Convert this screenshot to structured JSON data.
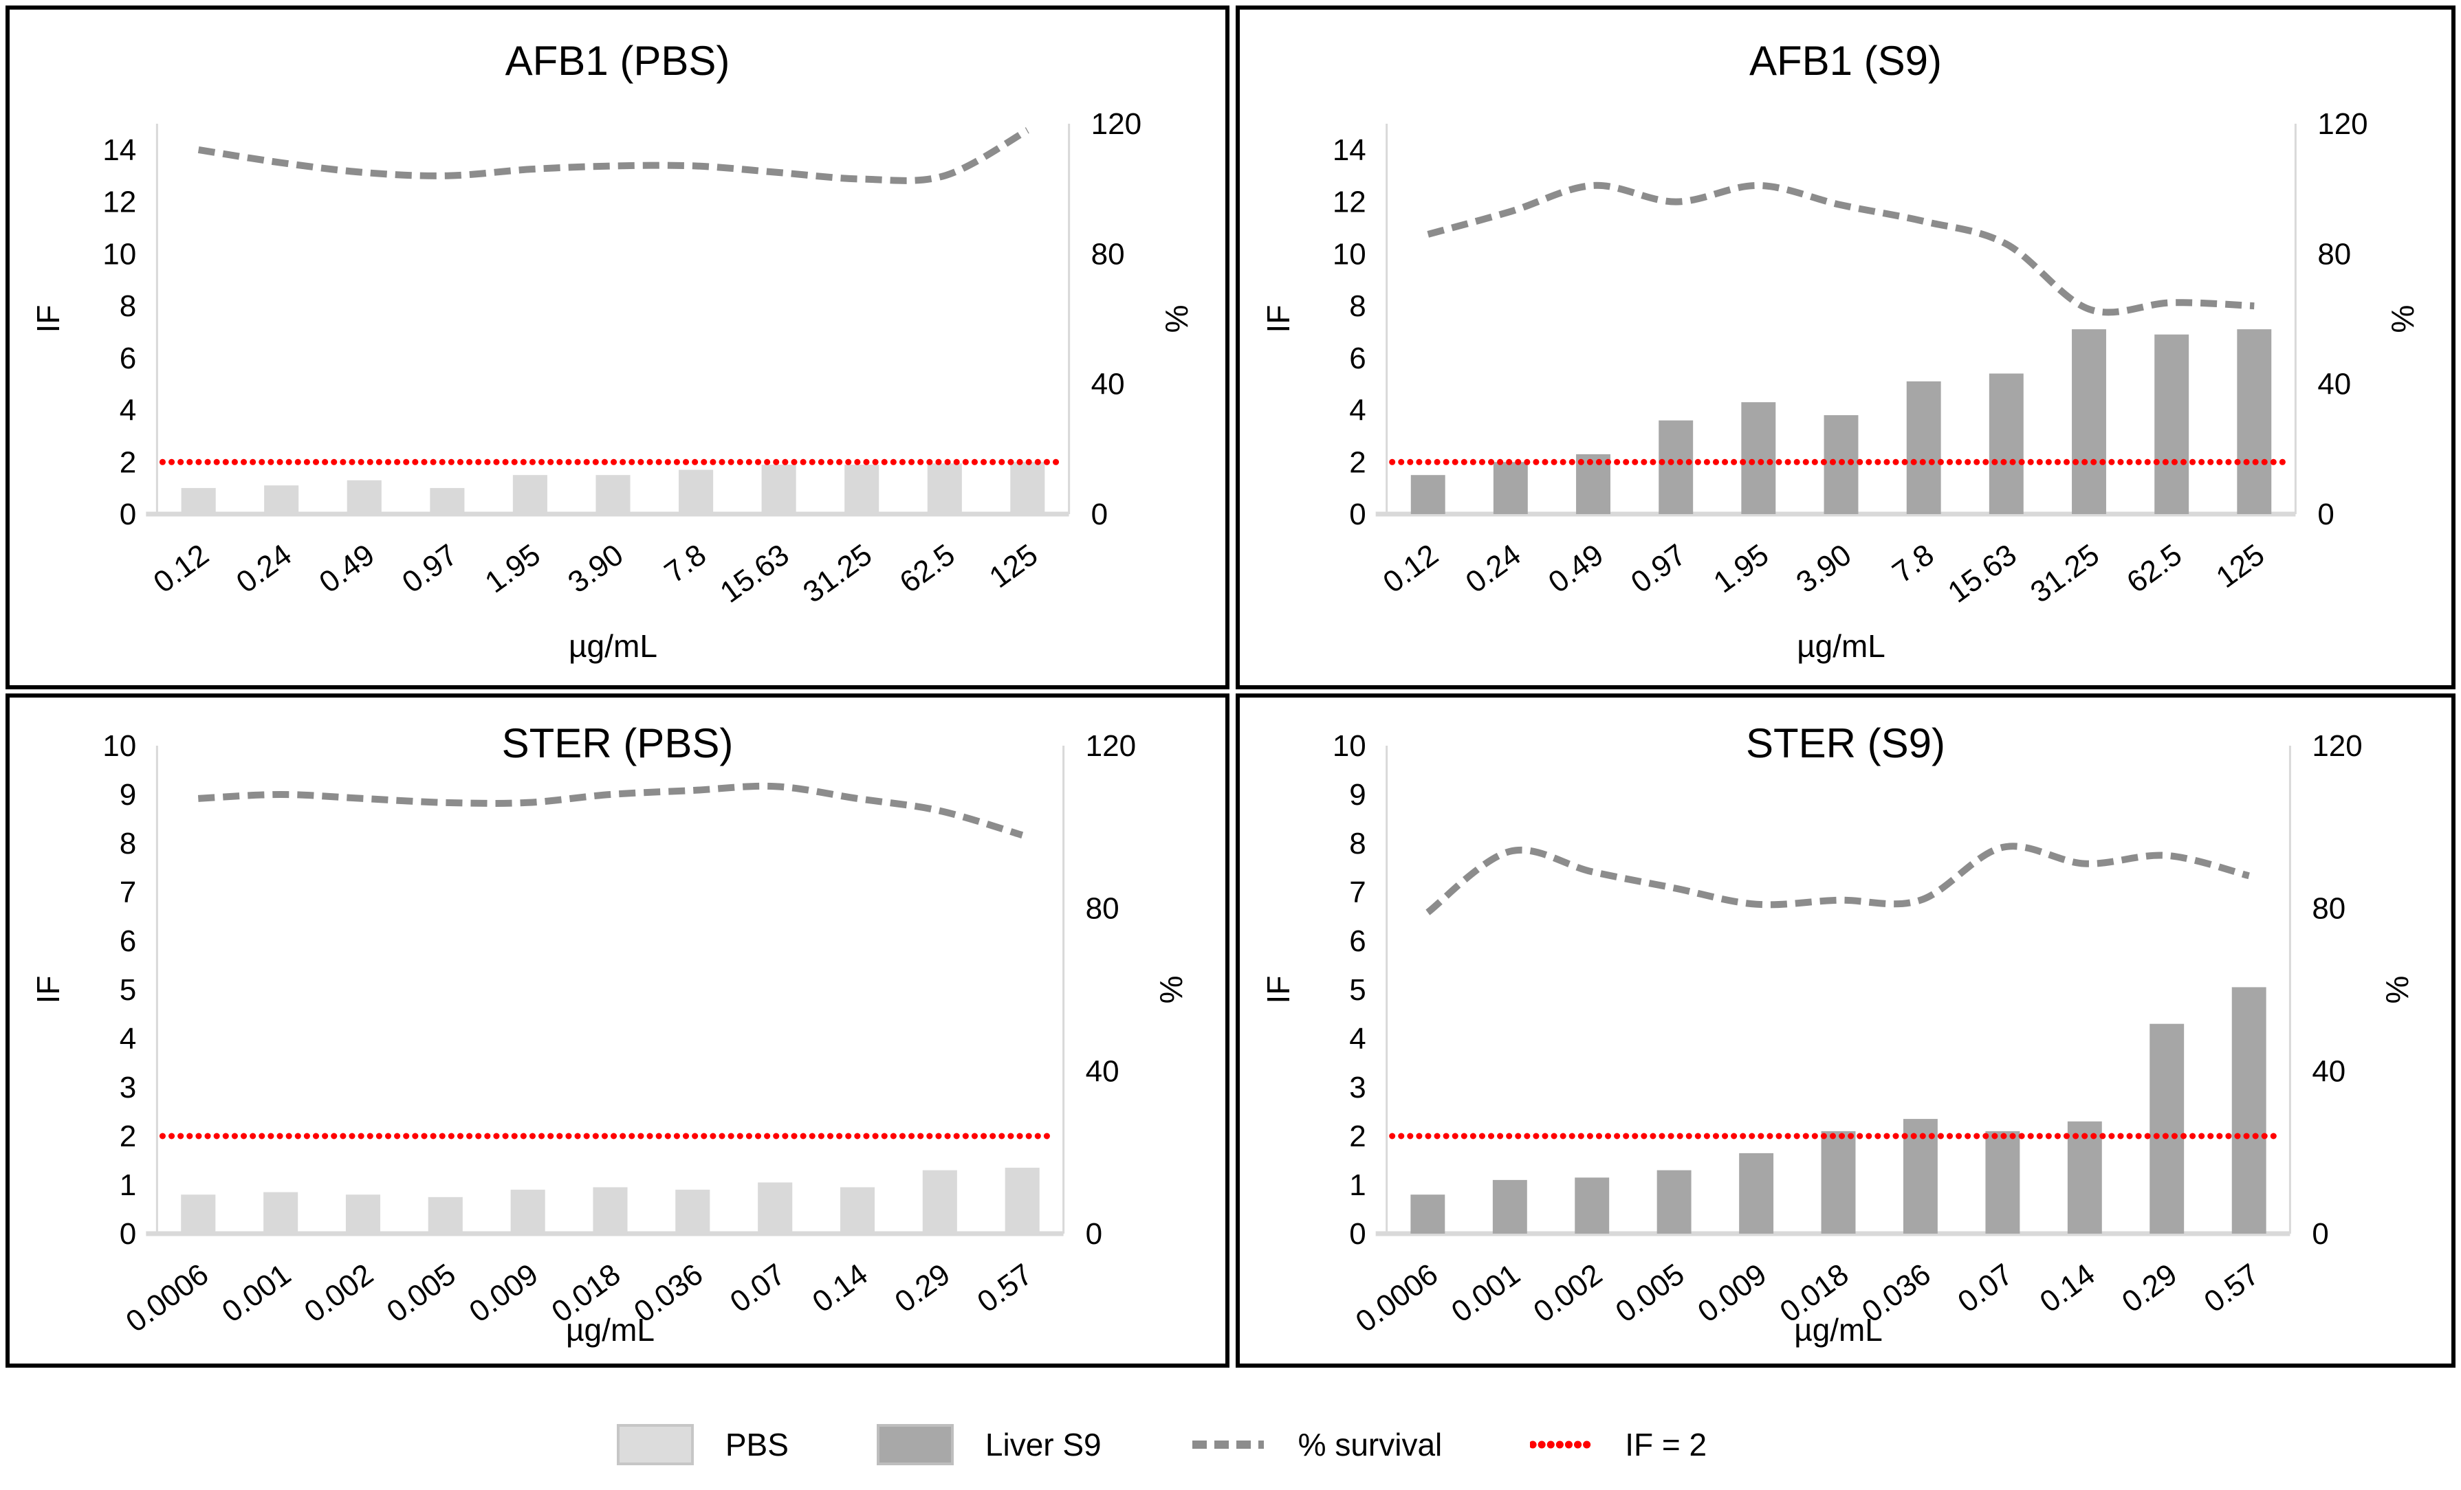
{
  "figure_title": "",
  "colors": {
    "bar_light": "#d9d9d9",
    "bar_dark": "#a6a6a6",
    "survival_line": "#8c8c8c",
    "ref_line": "#ff0000",
    "axis_line": "#d9d9d9",
    "baseline": "#d9d9d9",
    "text": "#000000",
    "panel_border": "#000000",
    "background": "#ffffff"
  },
  "legend": {
    "items": [
      {
        "kind": "swatch",
        "label": "PBS",
        "fill": "#dcdcdc",
        "stroke": "#c6c6c6"
      },
      {
        "kind": "swatch",
        "label": "Liver S9",
        "fill": "#a8a8a8",
        "stroke": "#bebebe"
      },
      {
        "kind": "dashes",
        "label": "% survival",
        "color": "#8c8c8c"
      },
      {
        "kind": "dots",
        "label": "IF = 2",
        "color": "#ff0000"
      }
    ]
  },
  "chart_data": [
    {
      "type": "bar",
      "title": "AFB1 (PBS)",
      "xlabel": "µg/mL",
      "categories": [
        "0.12",
        "0.24",
        "0.49",
        "0.97",
        "1.95",
        "3.90",
        "7.8",
        "15.63",
        "31.25",
        "62.5",
        "125"
      ],
      "left_axis": {
        "label": "IF",
        "min": 0,
        "max": 15,
        "ticks": [
          0,
          2,
          4,
          6,
          8,
          10,
          12,
          14
        ]
      },
      "right_axis": {
        "label": "%",
        "min": 0,
        "max": 120,
        "ticks": [
          0,
          40,
          80,
          120
        ]
      },
      "grid": false,
      "series": [
        {
          "name": "PBS",
          "type": "bar",
          "axis": "left",
          "color": "#d9d9d9",
          "values": [
            1.0,
            1.1,
            1.3,
            1.0,
            1.5,
            1.5,
            1.7,
            1.9,
            1.9,
            1.95,
            2.0
          ]
        },
        {
          "name": "% survival",
          "type": "line",
          "axis": "right",
          "color": "#8c8c8c",
          "values": [
            112,
            108,
            105,
            104,
            106,
            107,
            107,
            105,
            103,
            104,
            118
          ]
        },
        {
          "name": "IF = 2",
          "type": "refline",
          "axis": "left",
          "color": "#ff0000",
          "value": 2
        }
      ]
    },
    {
      "type": "bar",
      "title": "AFB1 (S9)",
      "xlabel": "µg/mL",
      "categories": [
        "0.12",
        "0.24",
        "0.49",
        "0.97",
        "1.95",
        "3.90",
        "7.8",
        "15.63",
        "31.25",
        "62.5",
        "125"
      ],
      "left_axis": {
        "label": "IF",
        "min": 0,
        "max": 15,
        "ticks": [
          0,
          2,
          4,
          6,
          8,
          10,
          12,
          14
        ]
      },
      "right_axis": {
        "label": "%",
        "min": 0,
        "max": 120,
        "ticks": [
          0,
          40,
          80,
          120
        ]
      },
      "grid": false,
      "series": [
        {
          "name": "Liver S9",
          "type": "bar",
          "axis": "left",
          "color": "#a6a6a6",
          "values": [
            1.5,
            2.0,
            2.3,
            3.6,
            4.3,
            3.8,
            5.1,
            5.4,
            7.1,
            6.9,
            7.1
          ]
        },
        {
          "name": "% survival",
          "type": "line",
          "axis": "right",
          "color": "#8c8c8c",
          "values": [
            86,
            93,
            101,
            96,
            101,
            95,
            90,
            83,
            63,
            65,
            64
          ]
        },
        {
          "name": "IF = 2",
          "type": "refline",
          "axis": "left",
          "color": "#ff0000",
          "value": 2
        }
      ]
    },
    {
      "type": "bar",
      "title": "STER (PBS)",
      "xlabel": "µg/mL",
      "categories": [
        "0.0006",
        "0.001",
        "0.002",
        "0.005",
        "0.009",
        "0.018",
        "0.036",
        "0.07",
        "0.14",
        "0.29",
        "0.57"
      ],
      "left_axis": {
        "label": "IF",
        "min": 0,
        "max": 10,
        "ticks": [
          0,
          1,
          2,
          3,
          4,
          5,
          6,
          7,
          8,
          9,
          10
        ]
      },
      "right_axis": {
        "label": "%",
        "min": 0,
        "max": 120,
        "ticks": [
          0,
          40,
          80,
          120
        ]
      },
      "grid": false,
      "series": [
        {
          "name": "PBS",
          "type": "bar",
          "axis": "left",
          "color": "#d9d9d9",
          "values": [
            0.8,
            0.85,
            0.8,
            0.75,
            0.9,
            0.95,
            0.9,
            1.05,
            0.95,
            1.3,
            1.35
          ]
        },
        {
          "name": "% survival",
          "type": "line",
          "axis": "right",
          "color": "#8c8c8c",
          "values": [
            107,
            108,
            107,
            106,
            106,
            108,
            109,
            110,
            107,
            104,
            98
          ]
        },
        {
          "name": "IF = 2",
          "type": "refline",
          "axis": "left",
          "color": "#ff0000",
          "value": 2
        }
      ]
    },
    {
      "type": "bar",
      "title": "STER (S9)",
      "xlabel": "µg/mL",
      "categories": [
        "0.0006",
        "0.001",
        "0.002",
        "0.005",
        "0.009",
        "0.018",
        "0.036",
        "0.07",
        "0.14",
        "0.29",
        "0.57"
      ],
      "left_axis": {
        "label": "IF",
        "min": 0,
        "max": 10,
        "ticks": [
          0,
          1,
          2,
          3,
          4,
          5,
          6,
          7,
          8,
          9,
          10
        ]
      },
      "right_axis": {
        "label": "%",
        "min": 0,
        "max": 120,
        "ticks": [
          0,
          40,
          80,
          120
        ]
      },
      "grid": false,
      "series": [
        {
          "name": "Liver S9",
          "type": "bar",
          "axis": "left",
          "color": "#a6a6a6",
          "values": [
            0.8,
            1.1,
            1.15,
            1.3,
            1.65,
            2.1,
            2.35,
            2.1,
            2.3,
            4.3,
            5.05
          ]
        },
        {
          "name": "% survival",
          "type": "line",
          "axis": "right",
          "color": "#8c8c8c",
          "values": [
            79,
            94,
            89,
            85,
            81,
            82,
            82,
            95,
            91,
            93,
            88
          ]
        },
        {
          "name": "IF = 2",
          "type": "refline",
          "axis": "left",
          "color": "#ff0000",
          "value": 2
        }
      ]
    }
  ]
}
